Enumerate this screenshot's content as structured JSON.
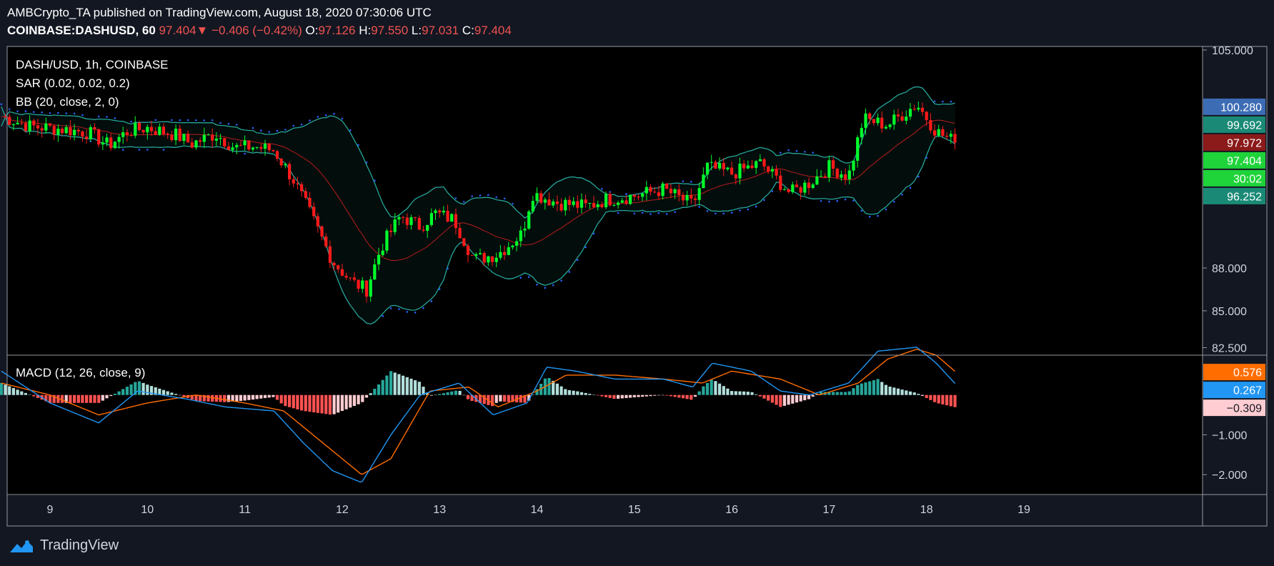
{
  "header": {
    "publisher_line": "AMBCrypto_TA published on TradingView.com, August 18, 2020 07:30:06 UTC",
    "symbol": "COINBASE:DASHUSD, 60",
    "last": "97.404",
    "change_arrow": "▼",
    "change": "−0.406 (−0.42%)",
    "o_label": "O:",
    "o": "97.126",
    "h_label": "H:",
    "h": "97.550",
    "l_label": "L:",
    "l": "97.031",
    "c_label": "C:",
    "c": "97.404"
  },
  "legend": {
    "main": "DASH/USD, 1h, COINBASE",
    "sar": "SAR (0.02, 0.02, 0.2)",
    "bb": "BB (20, close, 2, 0)",
    "macd": "MACD (12, 26, close, 9)"
  },
  "colors": {
    "background": "#000000",
    "frame": "#9598a1",
    "up": "#00ff2a",
    "down": "#ff1a1a",
    "bb_band": "#26a69a",
    "bb_basis": "#b71c1c",
    "sar": "#2962ff",
    "macd_line": "#2196f3",
    "signal_line": "#ff6d00",
    "hist_pos_strong": "#26a69a",
    "hist_pos_weak": "#b2dfdb",
    "hist_neg_strong": "#ff5252",
    "hist_neg_weak": "#ffcdd2"
  },
  "footer": {
    "brand": "TradingView",
    "logo_icon": "tradingview-logo-icon"
  },
  "chart_data": [
    {
      "type": "candlestick",
      "title": "DASH/USD, 1h, COINBASE",
      "x_tick_labels": [
        "9",
        "10",
        "11",
        "12",
        "13",
        "14",
        "15",
        "16",
        "17",
        "18",
        "19"
      ],
      "y_tick_labels": [
        "105.000",
        "88.000",
        "85.000",
        "82.500"
      ],
      "ylim": [
        82.0,
        105.3
      ],
      "scale": "log",
      "price_tags": [
        {
          "value": "100.280",
          "color": "#3c6cb4"
        },
        {
          "value": "99.692",
          "color": "#1a8a76"
        },
        {
          "value": "97.972",
          "color": "#8b1a1a"
        },
        {
          "value": "97.404",
          "color": "#1fd33a"
        },
        {
          "value": "30:02",
          "color": "#1fd33a"
        },
        {
          "value": "96.252",
          "color": "#1a8a76"
        }
      ],
      "close_series": [
        {
          "day": 8.5,
          "value": 99.5
        },
        {
          "day": 8.8,
          "value": 98.7
        },
        {
          "day": 9.1,
          "value": 98.5
        },
        {
          "day": 9.4,
          "value": 98.2
        },
        {
          "day": 9.6,
          "value": 97.2
        },
        {
          "day": 9.8,
          "value": 98.3
        },
        {
          "day": 10.0,
          "value": 98.6
        },
        {
          "day": 10.3,
          "value": 98.0
        },
        {
          "day": 10.45,
          "value": 97.3
        },
        {
          "day": 10.7,
          "value": 98.1
        },
        {
          "day": 10.9,
          "value": 97.0
        },
        {
          "day": 11.1,
          "value": 97.1
        },
        {
          "day": 11.3,
          "value": 96.8
        },
        {
          "day": 11.5,
          "value": 94.5
        },
        {
          "day": 11.7,
          "value": 91.5
        },
        {
          "day": 11.9,
          "value": 88.5
        },
        {
          "day": 12.1,
          "value": 87.0
        },
        {
          "day": 12.25,
          "value": 86.5
        },
        {
          "day": 12.4,
          "value": 89.5
        },
        {
          "day": 12.6,
          "value": 91.8
        },
        {
          "day": 12.8,
          "value": 91.0
        },
        {
          "day": 12.95,
          "value": 92.0
        },
        {
          "day": 13.15,
          "value": 91.5
        },
        {
          "day": 13.35,
          "value": 88.6
        },
        {
          "day": 13.6,
          "value": 89.0
        },
        {
          "day": 13.85,
          "value": 90.5
        },
        {
          "day": 13.95,
          "value": 93.5
        },
        {
          "day": 14.2,
          "value": 92.8
        },
        {
          "day": 14.5,
          "value": 92.5
        },
        {
          "day": 14.7,
          "value": 93.0
        },
        {
          "day": 15.0,
          "value": 93.3
        },
        {
          "day": 15.3,
          "value": 93.8
        },
        {
          "day": 15.6,
          "value": 92.6
        },
        {
          "day": 15.75,
          "value": 95.5
        },
        {
          "day": 16.0,
          "value": 95.0
        },
        {
          "day": 16.3,
          "value": 95.8
        },
        {
          "day": 16.6,
          "value": 93.5
        },
        {
          "day": 16.8,
          "value": 94.3
        },
        {
          "day": 17.0,
          "value": 95.5
        },
        {
          "day": 17.2,
          "value": 94.8
        },
        {
          "day": 17.35,
          "value": 99.3
        },
        {
          "day": 17.6,
          "value": 98.8
        },
        {
          "day": 17.9,
          "value": 100.5
        },
        {
          "day": 18.1,
          "value": 98.3
        },
        {
          "day": 18.3,
          "value": 97.404
        }
      ]
    },
    {
      "type": "line",
      "title": "MACD (12, 26, close, 9)",
      "y_tick_labels": [
        "−1.000",
        "−2.000"
      ],
      "ylim": [
        -2.5,
        1.0
      ],
      "value_tags": [
        {
          "value": "0.576",
          "color": "#ff6d00"
        },
        {
          "value": "0.267",
          "color": "#2196f3"
        },
        {
          "value": "−0.309",
          "color": "#ffcdd2"
        }
      ],
      "macd_series": [
        {
          "day": 8.5,
          "value": 0.6
        },
        {
          "day": 9.0,
          "value": -0.2
        },
        {
          "day": 9.5,
          "value": -0.7
        },
        {
          "day": 9.9,
          "value": 0.1
        },
        {
          "day": 10.4,
          "value": -0.1
        },
        {
          "day": 10.8,
          "value": -0.3
        },
        {
          "day": 11.3,
          "value": -0.4
        },
        {
          "day": 11.6,
          "value": -1.2
        },
        {
          "day": 11.9,
          "value": -1.9
        },
        {
          "day": 12.2,
          "value": -2.2
        },
        {
          "day": 12.5,
          "value": -1.0
        },
        {
          "day": 12.8,
          "value": 0.0
        },
        {
          "day": 13.2,
          "value": 0.3
        },
        {
          "day": 13.55,
          "value": -0.5
        },
        {
          "day": 13.9,
          "value": -0.2
        },
        {
          "day": 14.1,
          "value": 0.7
        },
        {
          "day": 14.4,
          "value": 0.6
        },
        {
          "day": 14.8,
          "value": 0.4
        },
        {
          "day": 15.3,
          "value": 0.4
        },
        {
          "day": 15.6,
          "value": 0.2
        },
        {
          "day": 15.8,
          "value": 0.8
        },
        {
          "day": 16.2,
          "value": 0.6
        },
        {
          "day": 16.5,
          "value": 0.1
        },
        {
          "day": 16.8,
          "value": 0.0
        },
        {
          "day": 17.2,
          "value": 0.3
        },
        {
          "day": 17.5,
          "value": 1.1
        },
        {
          "day": 17.9,
          "value": 1.2
        },
        {
          "day": 18.1,
          "value": 0.8
        },
        {
          "day": 18.3,
          "value": 0.267
        }
      ],
      "signal_series": [
        {
          "day": 8.5,
          "value": 0.3
        },
        {
          "day": 9.0,
          "value": 0.0
        },
        {
          "day": 9.5,
          "value": -0.5
        },
        {
          "day": 10.0,
          "value": -0.2
        },
        {
          "day": 10.5,
          "value": 0.0
        },
        {
          "day": 11.0,
          "value": -0.2
        },
        {
          "day": 11.4,
          "value": -0.4
        },
        {
          "day": 11.8,
          "value": -1.2
        },
        {
          "day": 12.2,
          "value": -2.0
        },
        {
          "day": 12.5,
          "value": -1.6
        },
        {
          "day": 12.9,
          "value": 0.1
        },
        {
          "day": 13.3,
          "value": 0.2
        },
        {
          "day": 13.6,
          "value": -0.3
        },
        {
          "day": 14.0,
          "value": 0.1
        },
        {
          "day": 14.3,
          "value": 0.5
        },
        {
          "day": 14.8,
          "value": 0.5
        },
        {
          "day": 15.3,
          "value": 0.4
        },
        {
          "day": 15.7,
          "value": 0.3
        },
        {
          "day": 16.0,
          "value": 0.6
        },
        {
          "day": 16.5,
          "value": 0.4
        },
        {
          "day": 16.9,
          "value": 0.0
        },
        {
          "day": 17.3,
          "value": 0.3
        },
        {
          "day": 17.6,
          "value": 0.9
        },
        {
          "day": 17.9,
          "value": 1.15
        },
        {
          "day": 18.1,
          "value": 1.0
        },
        {
          "day": 18.3,
          "value": 0.576
        }
      ]
    }
  ]
}
